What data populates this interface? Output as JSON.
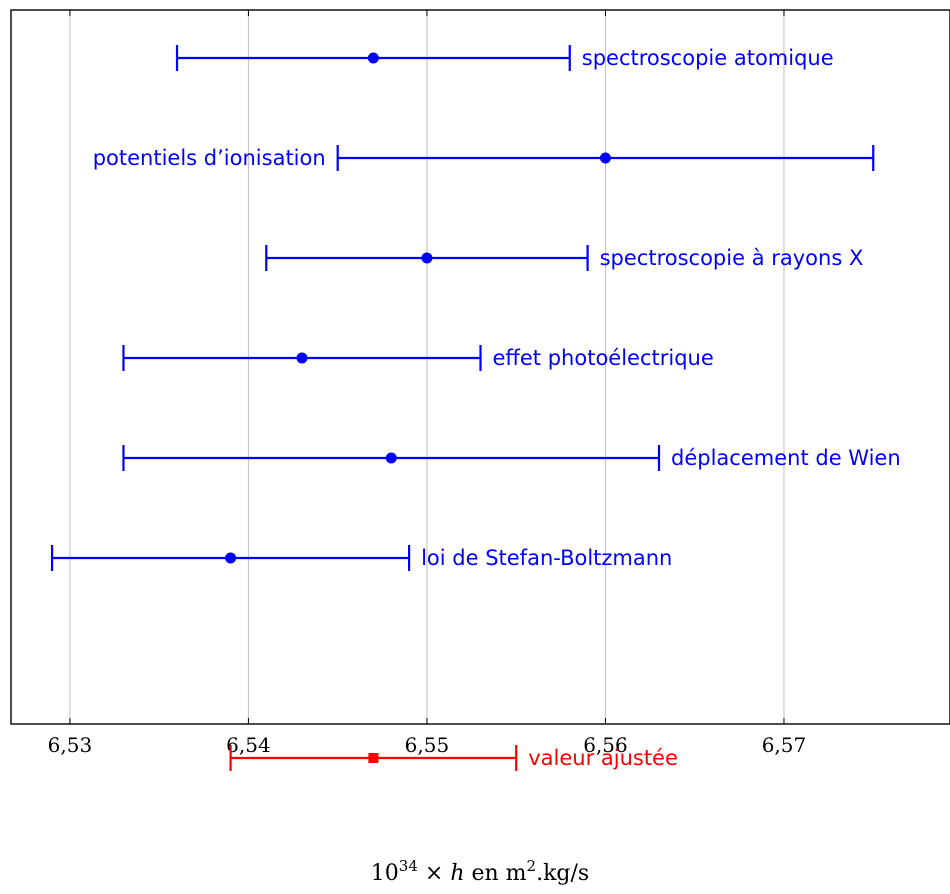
{
  "chart_data": {
    "type": "scatter",
    "title": "",
    "xlabel": "10^34 × h en m².kg/s",
    "xlabel_parts": {
      "base": "10",
      "exp": "34",
      "mid": " × ",
      "var": "h",
      "unit_pre": " en m",
      "unit_exp": "2",
      "unit_post": ".kg/s"
    },
    "ylabel": "",
    "xlim": [
      6.5267,
      6.5793
    ],
    "x_ticks": [
      6.53,
      6.54,
      6.55,
      6.56,
      6.57
    ],
    "x_tick_labels": [
      "6,53",
      "6,54",
      "6,55",
      "6,56",
      "6,57"
    ],
    "grid": "vertical",
    "points": [
      {
        "label": "spectroscopie atomique",
        "value": 6.547,
        "low": 6.536,
        "high": 6.558,
        "label_side": "right",
        "color": "#0000ff",
        "marker": "circle"
      },
      {
        "label": "potentiels d’ionisation",
        "value": 6.56,
        "low": 6.545,
        "high": 6.575,
        "label_side": "left",
        "color": "#0000ff",
        "marker": "circle"
      },
      {
        "label": "spectroscopie à rayons X",
        "value": 6.55,
        "low": 6.541,
        "high": 6.559,
        "label_side": "right",
        "color": "#0000ff",
        "marker": "circle"
      },
      {
        "label": "effet photoélectrique",
        "value": 6.543,
        "low": 6.533,
        "high": 6.553,
        "label_side": "right",
        "color": "#0000ff",
        "marker": "circle"
      },
      {
        "label": "déplacement de Wien",
        "value": 6.548,
        "low": 6.533,
        "high": 6.563,
        "label_side": "right",
        "color": "#0000ff",
        "marker": "circle"
      },
      {
        "label": "loi de Stefan-Boltzmann",
        "value": 6.539,
        "low": 6.529,
        "high": 6.549,
        "label_side": "right",
        "color": "#0000ff",
        "marker": "circle"
      },
      {
        "label": "valeur ajustée",
        "value": 6.547,
        "low": 6.539,
        "high": 6.555,
        "label_side": "right",
        "color": "#ff0000",
        "marker": "square"
      }
    ]
  }
}
